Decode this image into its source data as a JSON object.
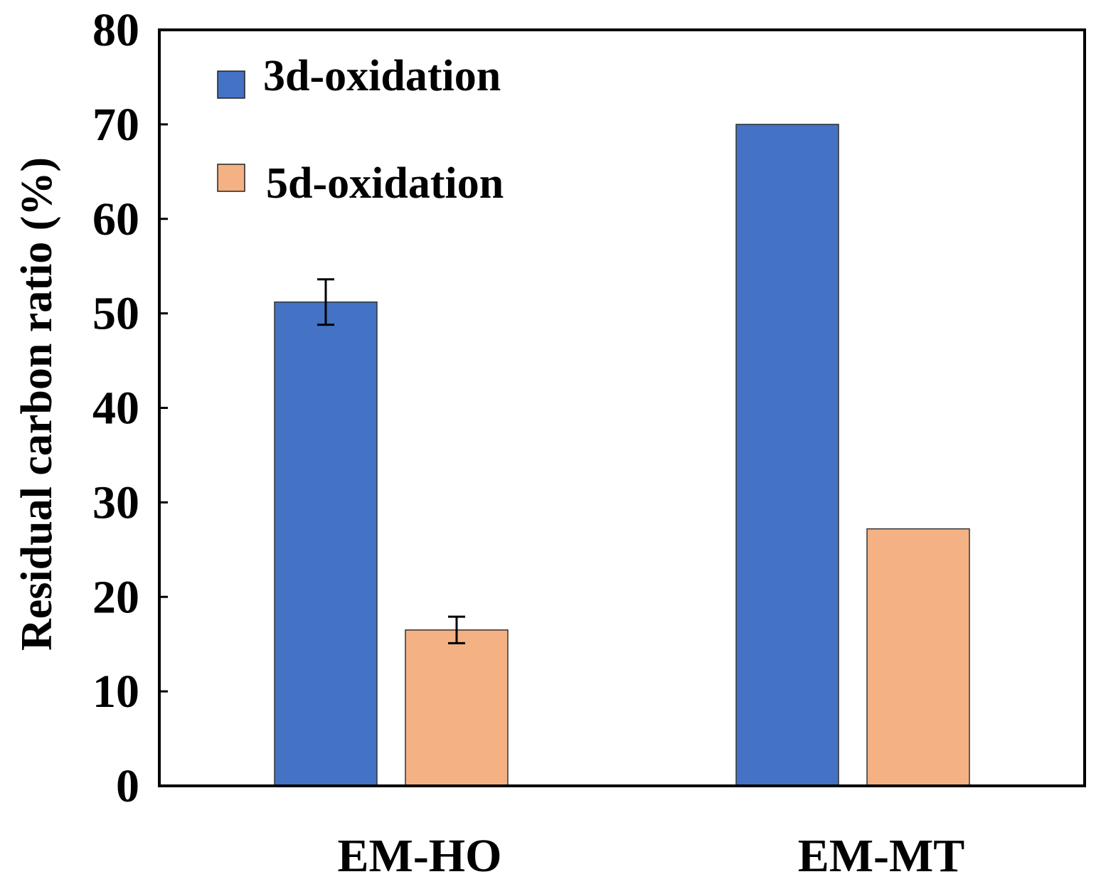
{
  "chart_data": {
    "type": "bar",
    "title": "",
    "xlabel": "",
    "ylabel": "Residual carbon ratio (%)",
    "ylim": [
      0,
      80
    ],
    "yticks": [
      0,
      10,
      20,
      30,
      40,
      50,
      60,
      70,
      80
    ],
    "categories": [
      "EM-HO",
      "EM-MT"
    ],
    "series": [
      {
        "name": "3d-oxidation",
        "color": "#4472C4",
        "values": [
          51.2,
          70.0
        ],
        "errors": [
          2.4,
          0
        ]
      },
      {
        "name": "5d-oxidation",
        "color": "#F4B183",
        "values": [
          16.5,
          27.2
        ],
        "errors": [
          1.4,
          0
        ]
      }
    ],
    "legend_position": "top-left",
    "grid": false
  }
}
